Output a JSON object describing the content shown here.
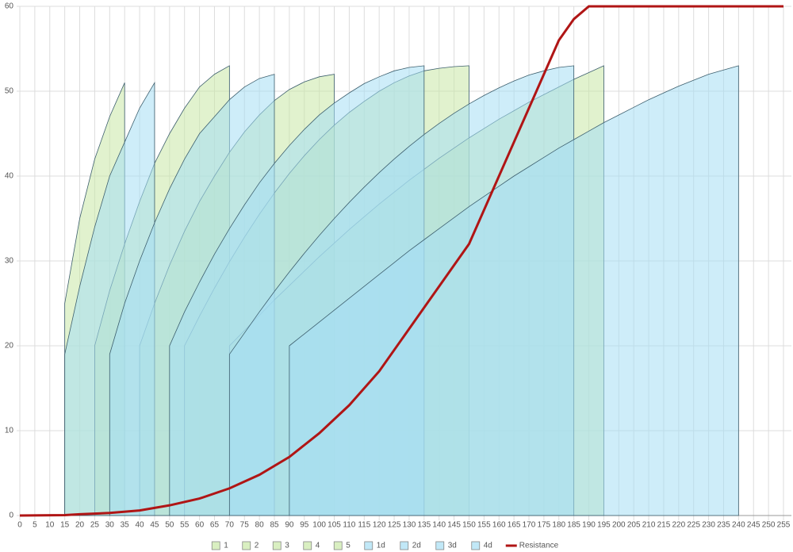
{
  "chart_data": {
    "type": "area",
    "xlim": [
      0,
      255
    ],
    "ylim": [
      0,
      60
    ],
    "xticks": [
      0,
      5,
      10,
      15,
      20,
      25,
      30,
      35,
      40,
      45,
      50,
      55,
      60,
      65,
      70,
      75,
      80,
      85,
      90,
      95,
      100,
      105,
      110,
      115,
      120,
      125,
      130,
      135,
      140,
      145,
      150,
      155,
      160,
      165,
      170,
      175,
      180,
      185,
      190,
      195,
      200,
      205,
      210,
      215,
      220,
      225,
      230,
      235,
      240,
      245,
      250,
      255
    ],
    "yticks": [
      0,
      10,
      20,
      30,
      40,
      50,
      60
    ],
    "grid": true,
    "legend": "bottom",
    "series": [
      {
        "name": "1",
        "color": "#c9e8a6",
        "x": [
          15,
          20,
          25,
          30,
          35
        ],
        "values": [
          25,
          35,
          42,
          47,
          51
        ]
      },
      {
        "name": "2",
        "color": "#c9e8a6",
        "x": [
          25,
          30,
          35,
          40,
          45,
          50,
          55,
          60,
          65,
          70
        ],
        "values": [
          20,
          26.5,
          32,
          37,
          41.5,
          45,
          48,
          50.5,
          52,
          53
        ]
      },
      {
        "name": "3",
        "color": "#c9e8a6",
        "x": [
          40,
          45,
          50,
          55,
          60,
          65,
          70,
          75,
          80,
          85,
          90,
          95,
          100,
          105
        ],
        "values": [
          20,
          25,
          29.5,
          33.5,
          37,
          40,
          42.8,
          45.2,
          47.2,
          48.9,
          50.2,
          51.1,
          51.7,
          52
        ]
      },
      {
        "name": "4",
        "color": "#c9e8a6",
        "x": [
          55,
          60,
          65,
          70,
          75,
          80,
          85,
          90,
          95,
          100,
          105,
          110,
          115,
          120,
          125,
          130,
          135,
          140,
          145,
          150
        ],
        "values": [
          20,
          23.5,
          26.8,
          29.9,
          32.8,
          35.5,
          38,
          40.3,
          42.4,
          44.3,
          46,
          47.5,
          48.8,
          50,
          51,
          51.8,
          52.4,
          52.7,
          52.9,
          53
        ]
      },
      {
        "name": "5",
        "color": "#c9e8a6",
        "x": [
          70,
          75,
          80,
          85,
          90,
          95,
          100,
          105,
          110,
          115,
          120,
          125,
          130,
          135,
          140,
          145,
          150,
          155,
          160,
          165,
          170,
          175,
          180,
          185,
          190,
          195
        ],
        "values": [
          20,
          21.8,
          23.6,
          25.4,
          27.1,
          28.8,
          30.5,
          32.1,
          33.7,
          35.2,
          36.7,
          38.1,
          39.5,
          40.8,
          42.1,
          43.3,
          44.5,
          45.6,
          46.7,
          47.7,
          48.7,
          49.6,
          50.5,
          51.4,
          52.2,
          53
        ]
      },
      {
        "name": "1d",
        "color": "#a6def4",
        "x": [
          15,
          20,
          25,
          30,
          35,
          40,
          45
        ],
        "values": [
          19,
          27,
          34,
          40,
          44,
          48,
          51
        ]
      },
      {
        "name": "2d",
        "color": "#a6def4",
        "x": [
          30,
          35,
          40,
          45,
          50,
          55,
          60,
          65,
          70,
          75,
          80,
          85
        ],
        "values": [
          19,
          25,
          30,
          34.5,
          38.5,
          42,
          45,
          47,
          49,
          50.5,
          51.5,
          52
        ]
      },
      {
        "name": "3d",
        "color": "#a6def4",
        "x": [
          50,
          55,
          60,
          65,
          70,
          75,
          80,
          85,
          90,
          95,
          100,
          105,
          110,
          115,
          120,
          125,
          130,
          135
        ],
        "values": [
          20,
          24,
          27.5,
          30.8,
          33.8,
          36.6,
          39.2,
          41.5,
          43.6,
          45.5,
          47.2,
          48.6,
          49.8,
          50.9,
          51.7,
          52.4,
          52.8,
          53
        ]
      },
      {
        "name": "4d",
        "color": "#a6def4",
        "x": [
          70,
          75,
          80,
          85,
          90,
          95,
          100,
          105,
          110,
          115,
          120,
          125,
          130,
          135,
          140,
          145,
          150,
          155,
          160,
          165,
          170,
          175,
          180,
          185,
          null,
          90,
          95,
          100,
          105,
          110,
          115,
          120,
          125,
          130,
          135,
          140,
          145,
          150,
          155,
          160,
          165,
          170,
          175,
          180,
          185,
          190,
          195,
          200,
          205,
          210,
          215,
          220,
          225,
          230,
          235,
          240
        ],
        "values": [
          19,
          21.5,
          24,
          26.4,
          28.7,
          30.9,
          33,
          35,
          36.9,
          38.7,
          40.4,
          42,
          43.5,
          44.9,
          46.2,
          47.4,
          48.5,
          49.5,
          50.4,
          51.2,
          51.9,
          52.4,
          52.8,
          53,
          null,
          20,
          21.4,
          22.8,
          24.2,
          25.6,
          27,
          28.4,
          29.8,
          31.2,
          32.5,
          33.8,
          35.1,
          36.4,
          37.6,
          38.8,
          40,
          41.1,
          42.2,
          43.3,
          44.3,
          45.3,
          46.3,
          47.2,
          48.1,
          49,
          49.8,
          50.6,
          51.3,
          52,
          52.5,
          53
        ]
      },
      {
        "name": "Resistance",
        "color": "#b01515",
        "kind": "line",
        "x": [
          0,
          15,
          20,
          30,
          40,
          50,
          60,
          70,
          80,
          90,
          100,
          110,
          120,
          130,
          140,
          150,
          160,
          170,
          180,
          185,
          190,
          255
        ],
        "values": [
          0,
          0.05,
          0.15,
          0.3,
          0.6,
          1.2,
          2,
          3.2,
          4.8,
          6.9,
          9.7,
          13,
          17,
          22,
          27,
          32,
          40,
          48,
          56,
          58.5,
          60,
          60
        ]
      }
    ]
  }
}
